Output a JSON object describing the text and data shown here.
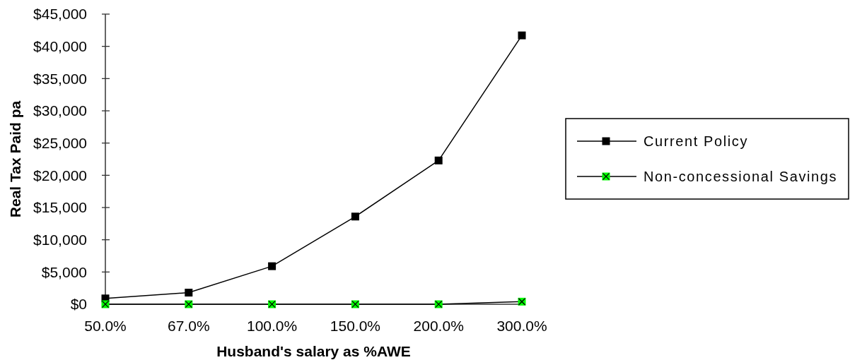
{
  "chart_data": {
    "type": "line",
    "xlabel": "Husband's salary as %AWE",
    "ylabel": "Real Tax Paid pa",
    "categories": [
      "50.0%",
      "67.0%",
      "100.0%",
      "150.0%",
      "200.0%",
      "300.0%"
    ],
    "ylim": [
      0,
      45000
    ],
    "yticks": [
      {
        "value": 0,
        "label": "$0"
      },
      {
        "value": 5000,
        "label": "$5,000"
      },
      {
        "value": 10000,
        "label": "$10,000"
      },
      {
        "value": 15000,
        "label": "$15,000"
      },
      {
        "value": 20000,
        "label": "$20,000"
      },
      {
        "value": 25000,
        "label": "$25,000"
      },
      {
        "value": 30000,
        "label": "$30,000"
      },
      {
        "value": 35000,
        "label": "$35,000"
      },
      {
        "value": 40000,
        "label": "$40,000"
      },
      {
        "value": 45000,
        "label": "$45,000"
      }
    ],
    "legend": "right",
    "marker": "square",
    "series": [
      {
        "name": "Current Policy",
        "color": "#000000",
        "values": [
          900,
          1800,
          5900,
          13600,
          22300,
          41700
        ]
      },
      {
        "name": "Non-concessional Savings",
        "color": "#00ff00",
        "values": [
          0,
          0,
          0,
          0,
          0,
          400
        ]
      }
    ]
  }
}
